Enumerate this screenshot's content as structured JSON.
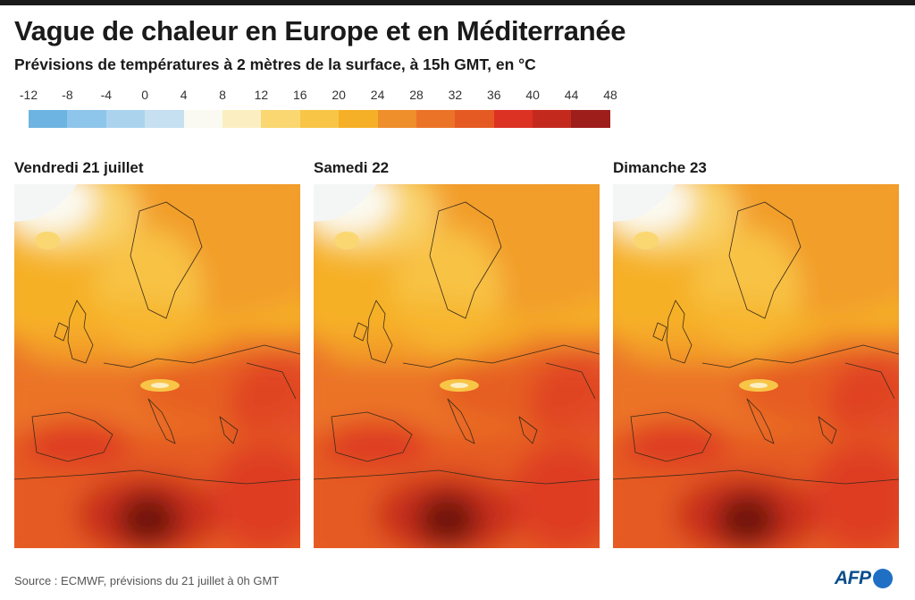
{
  "title": "Vague de chaleur en Europe et en Méditerranée",
  "subtitle": "Prévisions de températures à 2 mètres de la surface, à 15h GMT, en °C",
  "legend": {
    "ticks": [
      "-12",
      "-8",
      "-4",
      "0",
      "4",
      "8",
      "12",
      "16",
      "20",
      "24",
      "28",
      "32",
      "36",
      "40",
      "44",
      "48"
    ],
    "colors": [
      "#6eb4e3",
      "#8ec5ea",
      "#abd3ee",
      "#c6e0f1",
      "#fbfaf2",
      "#fbefc2",
      "#fad771",
      "#f8c547",
      "#f6b027",
      "#ee8f2c",
      "#eb7328",
      "#e55a22",
      "#dc3223",
      "#c4291e",
      "#9d1e1b",
      "#6a1310"
    ]
  },
  "panels": [
    {
      "label": "Vendredi 21 juillet"
    },
    {
      "label": "Samedi 22"
    },
    {
      "label": "Dimanche 23"
    }
  ],
  "source": "Source : ECMWF, prévisions du 21 juillet à 0h GMT",
  "logo": "AFP"
}
